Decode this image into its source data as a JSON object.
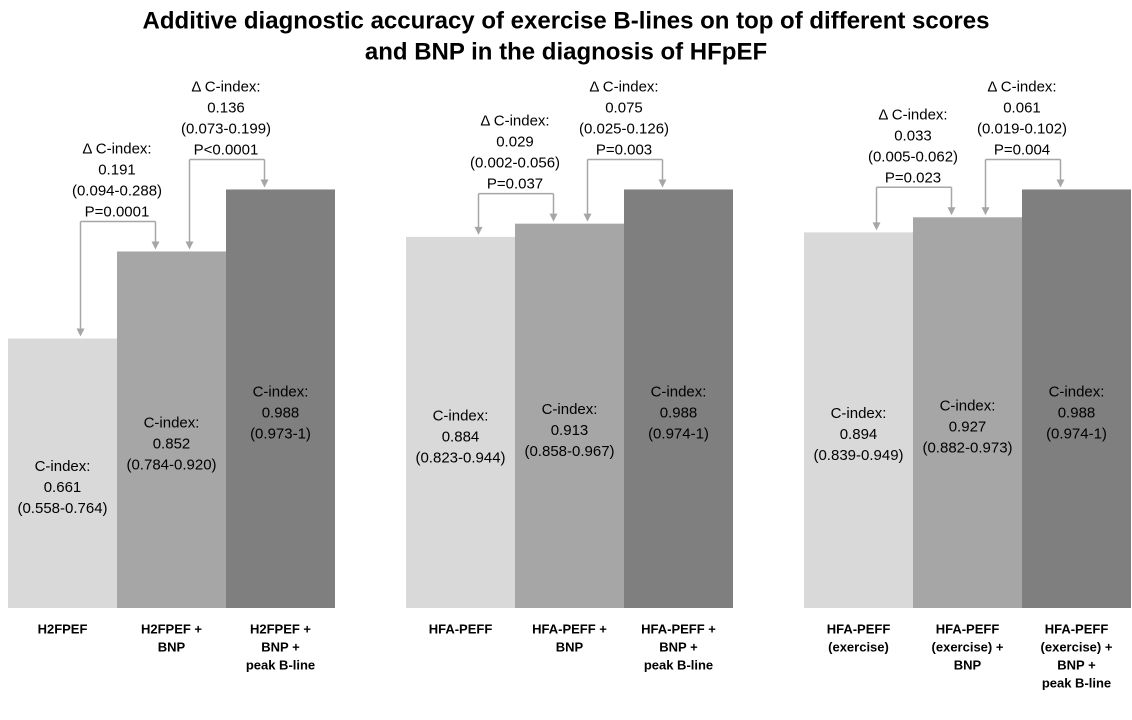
{
  "title": [
    "Additive diagnostic accuracy of exercise B-lines on top of different scores",
    "and BNP in the diagnosis of HFpEF"
  ],
  "chart_data": [
    {
      "type": "bar",
      "categories": [
        [
          "H2FPEF"
        ],
        [
          "H2FPEF +",
          "BNP"
        ],
        [
          "H2FPEF +",
          "BNP +",
          "peak B-line"
        ]
      ],
      "values": [
        0.661,
        0.852,
        0.988
      ],
      "value_label": "C-index:",
      "ci": [
        "(0.558-0.764)",
        "(0.784-0.920)",
        "(0.973-1)"
      ],
      "colors": [
        "#d9d9d9",
        "#a6a6a6",
        "#7f7f7f"
      ],
      "ylim": [
        0.07,
        1.0
      ],
      "comparisons": [
        {
          "label": "Δ C-index:",
          "delta": 0.191,
          "ci": "(0.094-0.288)",
          "p": "P=0.0001"
        },
        {
          "label": "Δ C-index:",
          "delta": 0.136,
          "ci": "(0.073-0.199)",
          "p": "P<0.0001"
        }
      ]
    },
    {
      "type": "bar",
      "categories": [
        [
          "HFA-PEFF"
        ],
        [
          "HFA-PEFF   +",
          "BNP"
        ],
        [
          "HFA-PEFF   +",
          "BNP +",
          "peak B-line"
        ]
      ],
      "values": [
        0.884,
        0.913,
        0.988
      ],
      "value_label": "C-index:",
      "ci": [
        "(0.823-0.944)",
        "(0.858-0.967)",
        "(0.974-1)"
      ],
      "colors": [
        "#d9d9d9",
        "#a6a6a6",
        "#7f7f7f"
      ],
      "ylim": [
        0.07,
        1.0
      ],
      "comparisons": [
        {
          "label": "Δ C-index:",
          "delta": 0.029,
          "ci": "(0.002-0.056)",
          "p": "P=0.037"
        },
        {
          "label": "Δ C-index:",
          "delta": 0.075,
          "ci": "(0.025-0.126)",
          "p": "P=0.003"
        }
      ]
    },
    {
      "type": "bar",
      "categories": [
        [
          "HFA-PEFF",
          "(exercise)"
        ],
        [
          "HFA-PEFF",
          "(exercise) +",
          "BNP"
        ],
        [
          "HFA-PEFF",
          "(exercise) +",
          "BNP +",
          "peak B-line"
        ]
      ],
      "values": [
        0.894,
        0.927,
        0.988
      ],
      "value_label": "C-index:",
      "ci": [
        "(0.839-0.949)",
        "(0.882-0.973)",
        "(0.974-1)"
      ],
      "colors": [
        "#d9d9d9",
        "#a6a6a6",
        "#7f7f7f"
      ],
      "ylim": [
        0.07,
        1.0
      ],
      "comparisons": [
        {
          "label": "Δ C-index:",
          "delta": 0.033,
          "ci": "(0.005-0.062)",
          "p": "P=0.023"
        },
        {
          "label": "Δ C-index:",
          "delta": 0.061,
          "ci": "(0.019-0.102)",
          "p": "P=0.004"
        }
      ]
    }
  ]
}
